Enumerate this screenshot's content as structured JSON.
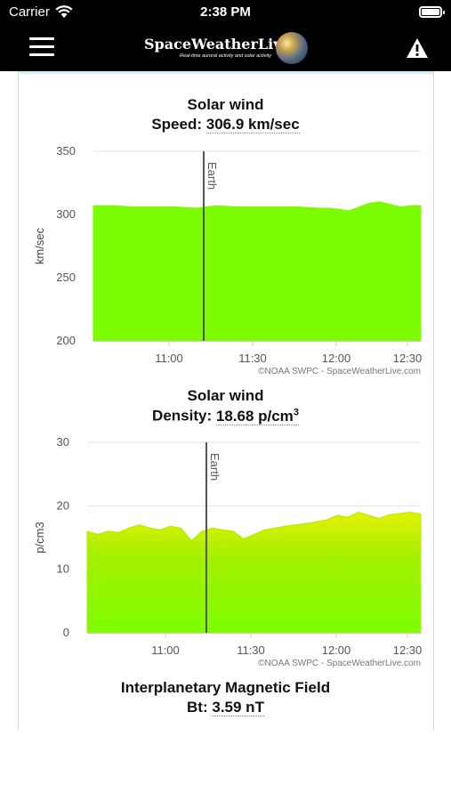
{
  "status_bar": {
    "carrier": "Carrier",
    "time": "2:38 PM"
  },
  "nav": {
    "brand": "SpaceWeatherLive",
    "tagline": "Real-time auroral activity and solar activity"
  },
  "speed_panel": {
    "heading": "Solar wind",
    "label": "Speed:",
    "value": "306.9 km/sec"
  },
  "density_panel": {
    "heading": "Solar wind",
    "label": "Density:",
    "value": "18.68 p/cm",
    "value_sup": "3"
  },
  "imf_panel": {
    "heading": "Interplanetary Magnetic Field",
    "label": "Bt:",
    "value": "3.59 nT"
  },
  "chart_data": [
    {
      "type": "area",
      "ylabel": "km/sec",
      "ylim": [
        200,
        350
      ],
      "yticks": [
        "350",
        "300",
        "250",
        "200"
      ],
      "xticks": [
        "11:00",
        "11:30",
        "12:00",
        "12:30"
      ],
      "marker_label": "Earth",
      "credit": "©NOAA SWPC - SpaceWeatherLive.com",
      "fill_color": "#7cfc00",
      "x_minutes": [
        0,
        10,
        20,
        30,
        40,
        50,
        55,
        60,
        70,
        80,
        90,
        100,
        110,
        115,
        120,
        125,
        130,
        135,
        140,
        145,
        150,
        155,
        160
      ],
      "values": [
        307,
        307,
        306,
        306,
        306,
        305,
        306,
        307,
        306,
        306,
        306,
        306,
        305,
        305,
        304,
        303,
        306,
        309,
        310,
        308,
        306,
        307,
        307
      ]
    },
    {
      "type": "area",
      "ylabel": "p/cm3",
      "ylim": [
        0,
        30
      ],
      "yticks": [
        "30",
        "20",
        "10",
        "0"
      ],
      "xticks": [
        "11:00",
        "11:30",
        "12:00",
        "12:30"
      ],
      "marker_label": "Earth",
      "credit": "©NOAA SWPC - SpaceWeatherLive.com",
      "fill_color": "#a8f000",
      "x_minutes": [
        0,
        5,
        10,
        15,
        20,
        25,
        30,
        35,
        40,
        45,
        50,
        55,
        60,
        65,
        70,
        75,
        80,
        85,
        90,
        95,
        100,
        105,
        110,
        115,
        120,
        125,
        130,
        135,
        140,
        145,
        150,
        155,
        160
      ],
      "values": [
        16,
        15.5,
        16,
        15.8,
        16.5,
        17,
        16.5,
        16.2,
        16.8,
        16.5,
        14.5,
        16,
        16.5,
        16.2,
        16,
        14.8,
        15.5,
        16.2,
        16.5,
        16.8,
        17,
        17.2,
        17.5,
        17.8,
        18.5,
        18.2,
        19,
        18.5,
        18,
        18.6,
        18.8,
        19,
        18.7
      ]
    }
  ]
}
